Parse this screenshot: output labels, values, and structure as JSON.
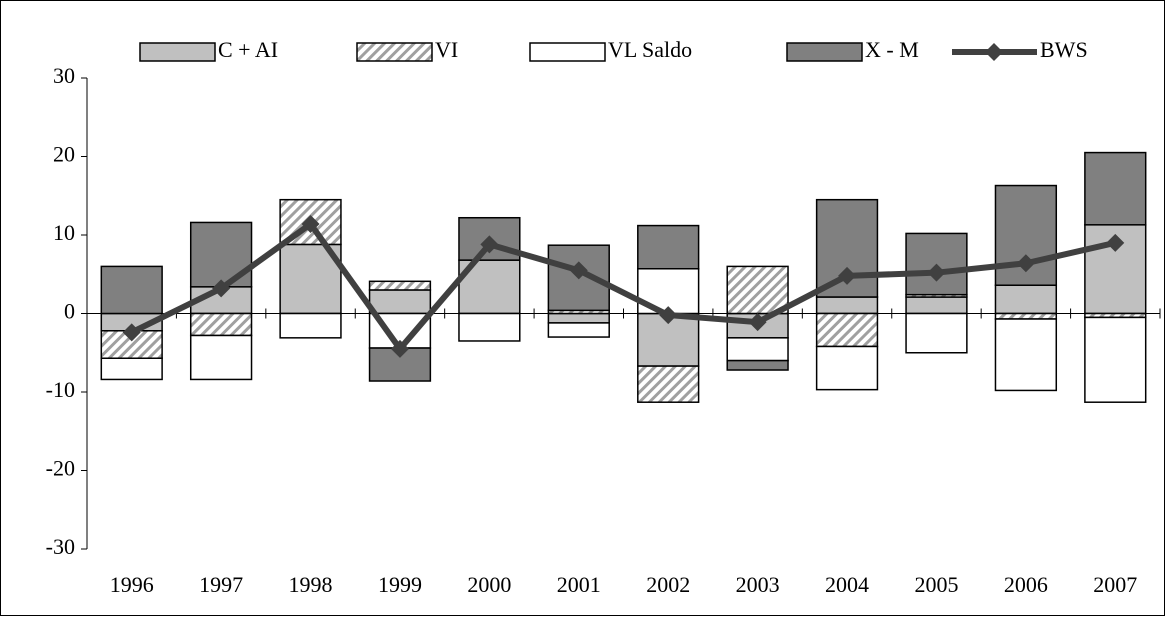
{
  "chart_data": {
    "type": "stacked-bar-line",
    "categories": [
      "1996",
      "1997",
      "1998",
      "1999",
      "2000",
      "2001",
      "2002",
      "2003",
      "2004",
      "2005",
      "2006",
      "2007"
    ],
    "series": [
      {
        "name": "C + AI",
        "type": "bar",
        "color": "#c0c0c0",
        "values": [
          -2.2,
          3.4,
          8.8,
          3.0,
          6.8,
          -1.2,
          -6.7,
          -3.1,
          2.1,
          2.1,
          3.6,
          11.3
        ]
      },
      {
        "name": "VI",
        "type": "bar",
        "color": "#a0a0a0",
        "pattern": "hatch",
        "values": [
          -3.5,
          -2.8,
          5.7,
          1.1,
          0,
          0.4,
          -4.6,
          6.0,
          -4.2,
          0.3,
          -0.7,
          -0.5
        ]
      },
      {
        "name": "VL Saldo",
        "type": "bar",
        "color": "#ffffff",
        "values": [
          -2.7,
          -5.6,
          -3.1,
          -4.4,
          -3.5,
          -1.8,
          5.7,
          -2.9,
          -5.5,
          -5.0,
          -9.1,
          -10.8
        ]
      },
      {
        "name": "X - M",
        "type": "bar",
        "color": "#808080",
        "values": [
          6.0,
          8.2,
          0,
          -4.2,
          5.4,
          8.3,
          5.5,
          -1.2,
          12.4,
          7.8,
          12.7,
          9.2
        ]
      },
      {
        "name": "BWS",
        "type": "line",
        "color": "#404040",
        "values": [
          -2.4,
          3.2,
          11.4,
          -4.5,
          8.8,
          5.5,
          -0.2,
          -1.1,
          4.8,
          5.2,
          6.4,
          9.0
        ]
      }
    ],
    "ylim": [
      -30,
      30
    ],
    "yticks": [
      -30,
      -20,
      -10,
      0,
      10,
      20,
      30
    ],
    "legend": "top"
  }
}
